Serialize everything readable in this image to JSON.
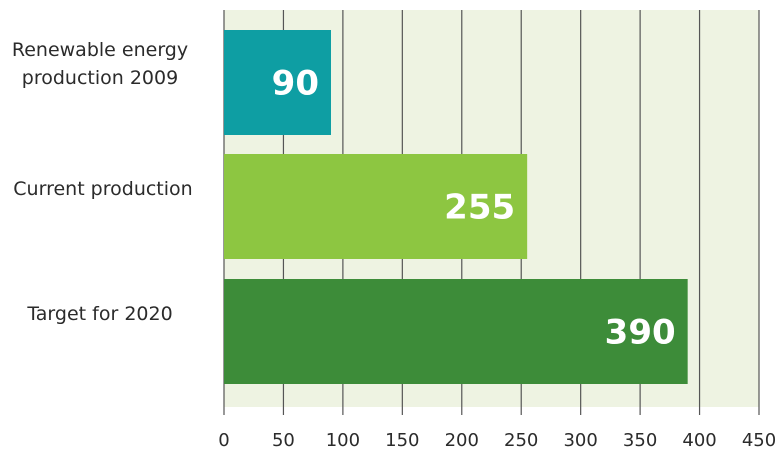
{
  "chart_data": {
    "type": "bar",
    "orientation": "horizontal",
    "categories": [
      "Renewable energy\nproduction 2009",
      "Current production",
      "Target for 2020"
    ],
    "values": [
      90,
      255,
      390
    ],
    "value_labels": [
      "90",
      "255",
      "390"
    ],
    "bar_colors": [
      "#0e9ea3",
      "#8dc641",
      "#3d8c39"
    ],
    "xlim": [
      0,
      450
    ],
    "xticks": [
      0,
      50,
      100,
      150,
      200,
      250,
      300,
      350,
      400,
      450
    ],
    "xtick_labels": [
      "0",
      "50",
      "100",
      "150",
      "200",
      "250",
      "300",
      "350",
      "400",
      "450"
    ],
    "grid": true,
    "plot_background": "#eef3e2",
    "grid_color": "#555555"
  }
}
